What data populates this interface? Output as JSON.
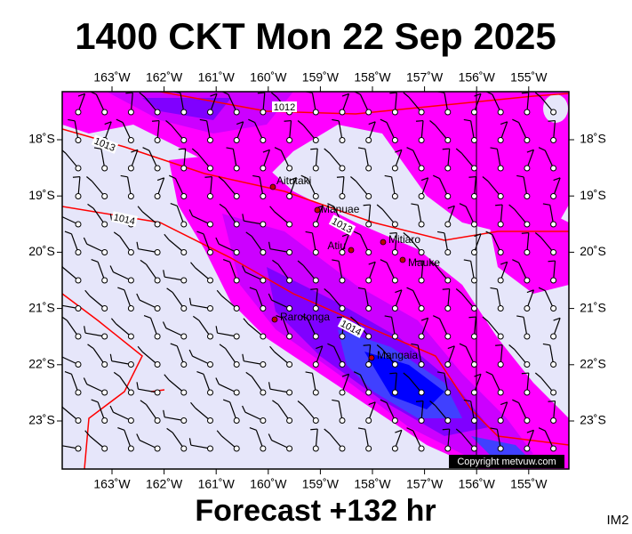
{
  "title": "1400 CKT Mon 22 Sep 2025",
  "footer": "Forecast +132 hr",
  "badge": "IM2",
  "copyright": "Copyright metvuw.com",
  "longitude_labels": [
    "163˚W",
    "162˚W",
    "161˚W",
    "160˚W",
    "159˚W",
    "158˚W",
    "157˚W",
    "156˚W",
    "155˚W"
  ],
  "latitude_labels": [
    "18˚S",
    "19˚S",
    "20˚S",
    "21˚S",
    "22˚S",
    "23˚S"
  ],
  "places": [
    {
      "label": "Aitutaki"
    },
    {
      "label": "Manuae"
    },
    {
      "label": "Atiu"
    },
    {
      "label": "Mitiaro"
    },
    {
      "label": "Mauke"
    },
    {
      "label": "Rarotonga"
    },
    {
      "label": "Mangaia"
    }
  ],
  "isobars": [
    {
      "label": "1012"
    },
    {
      "label": "1013"
    },
    {
      "label": "1014"
    },
    {
      "label": "1013"
    },
    {
      "label": "1014"
    }
  ]
}
